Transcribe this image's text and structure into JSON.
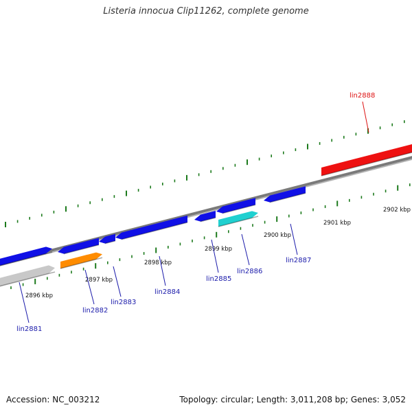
{
  "title": "Listeria innocua Clip11262, complete genome",
  "footer": {
    "accession": "Accession: NC_003212",
    "summary": "Topology: circular; Length: 3,011,208 bp; Genes: 3,052"
  },
  "colors": {
    "backbone": "#7a7a7a",
    "tick": "#1c7a1c",
    "gene_label": "#1a1aaa",
    "highlight_label": "#dd1111",
    "cds": "#1010e6",
    "rna": "#ff8c00",
    "other": "#20d0d0",
    "pseudo": "#c8c8c8",
    "selected": "#ee1111"
  },
  "kbp_labels": [
    "2896 kbp",
    "2897 kbp",
    "2898 kbp",
    "2899 kbp",
    "2900 kbp",
    "2901 kbp",
    "2902 kbp"
  ],
  "genes": [
    {
      "name": "lin2881",
      "color": "cds"
    },
    {
      "name": "lin2882",
      "color": "rna"
    },
    {
      "name": "lin2883",
      "color": "cds"
    },
    {
      "name": "lin2884",
      "color": "cds"
    },
    {
      "name": "lin2885",
      "color": "cds"
    },
    {
      "name": "lin2886",
      "color": "other"
    },
    {
      "name": "lin2887",
      "color": "cds"
    },
    {
      "name": "lin2888",
      "color": "selected"
    }
  ]
}
